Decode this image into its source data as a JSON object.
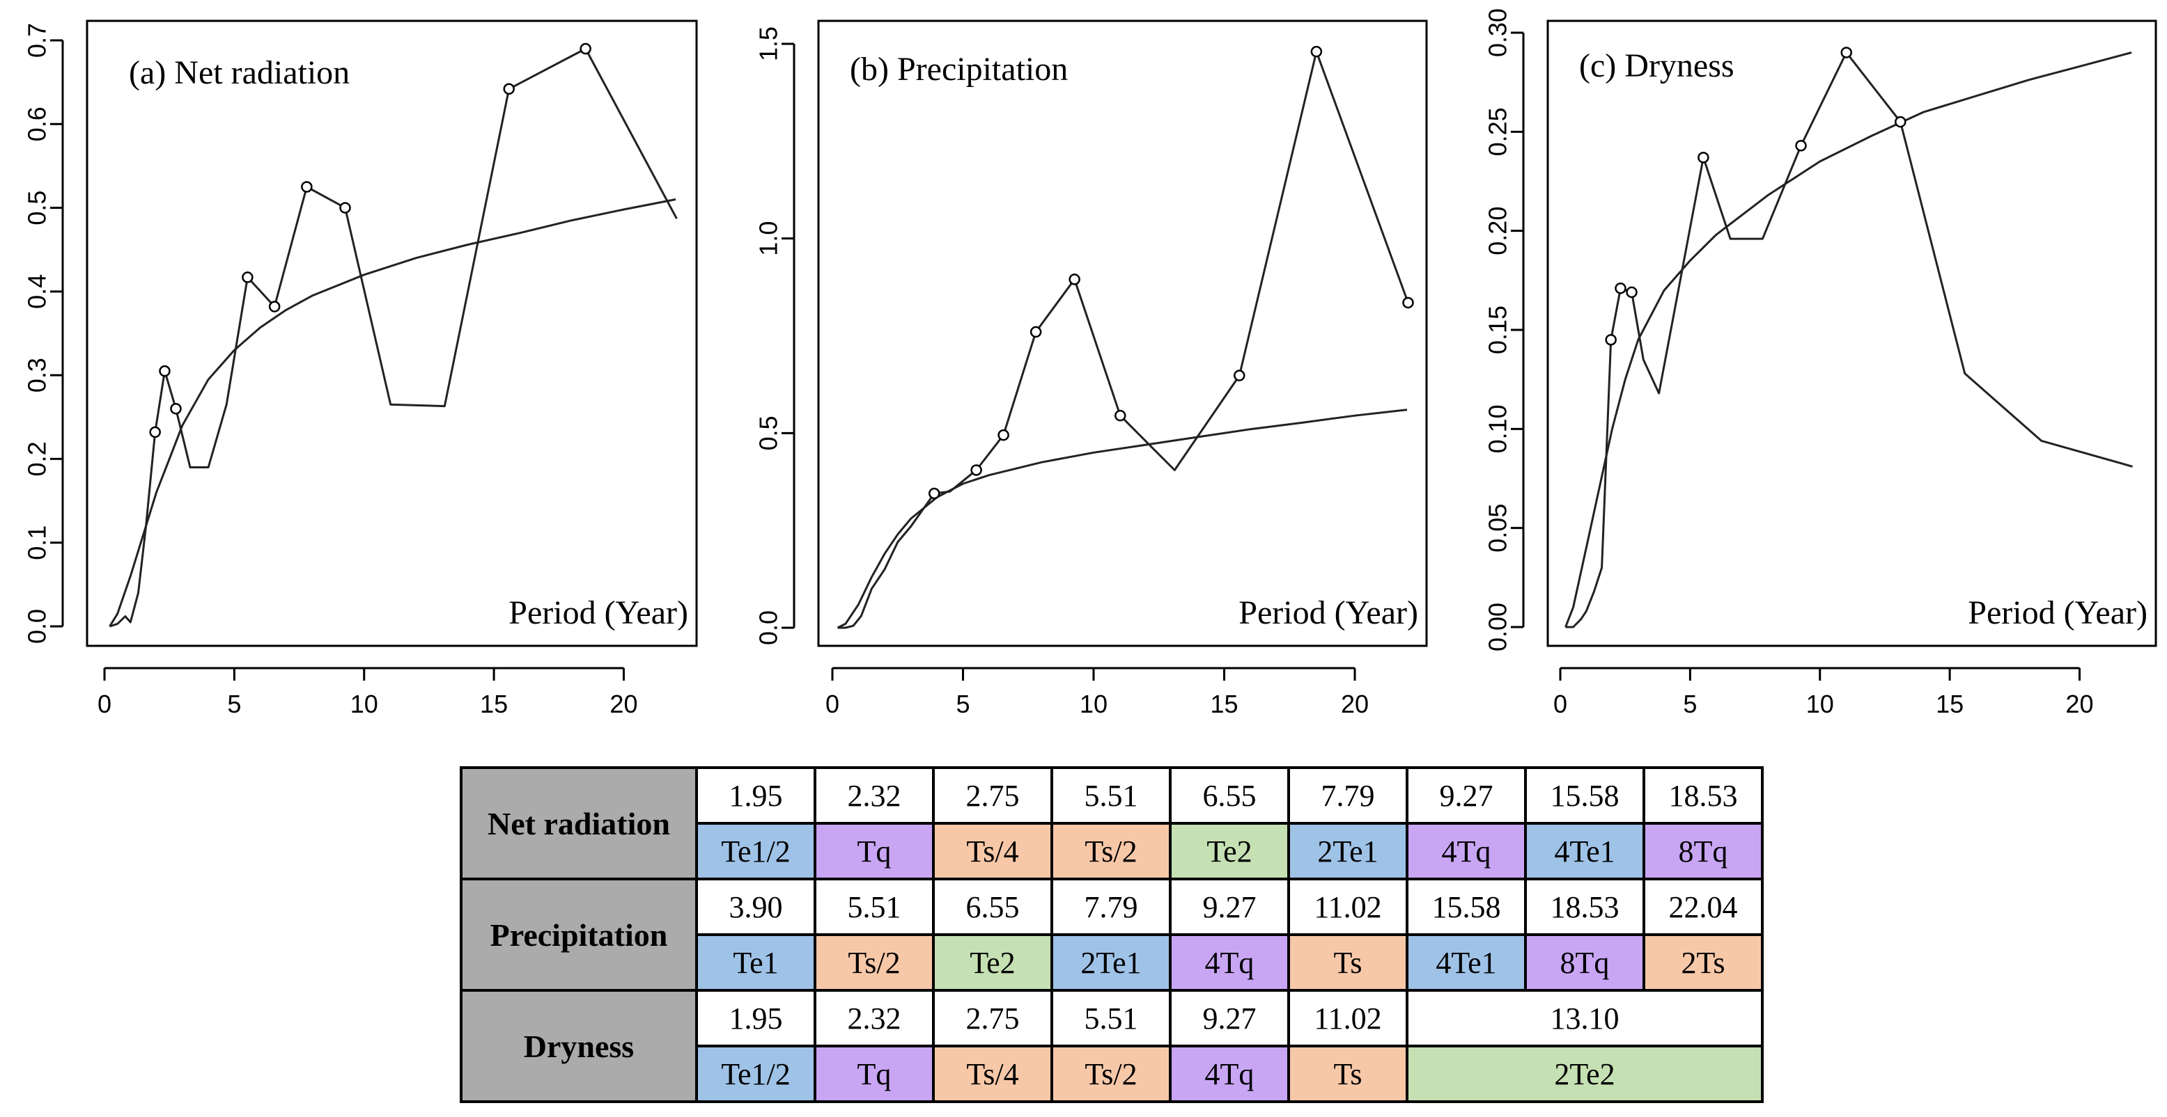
{
  "chart_data": [
    {
      "type": "line",
      "title": "(a) Net radiation",
      "xlabel": "Period (Year)",
      "ylabel": "",
      "xlim": [
        0,
        22
      ],
      "ylim": [
        0,
        0.7
      ],
      "xticks": [
        0,
        5,
        10,
        15,
        20
      ],
      "yticks": [
        0.0,
        0.1,
        0.2,
        0.3,
        0.4,
        0.5,
        0.6,
        0.7
      ],
      "ytick_labels": [
        "0.0",
        "0.1",
        "0.2",
        "0.3",
        "0.4",
        "0.5",
        "0.6",
        "0.7"
      ],
      "series": [
        {
          "style": "line",
          "x": [
            0.2,
            0.5,
            0.8,
            1.0,
            1.3,
            1.6,
            1.95,
            2.32,
            2.75,
            3.3,
            4.0,
            4.7,
            5.51,
            6.55,
            7.79,
            9.27,
            11.02,
            13.1,
            15.58,
            18.53,
            22.04
          ],
          "y": [
            0.0,
            0.003,
            0.012,
            0.005,
            0.04,
            0.12,
            0.232,
            0.305,
            0.26,
            0.19,
            0.19,
            0.265,
            0.417,
            0.382,
            0.525,
            0.5,
            0.265,
            0.263,
            0.642,
            0.69,
            0.487
          ]
        },
        {
          "style": "smooth",
          "x": [
            0.2,
            0.5,
            1.0,
            1.5,
            2.0,
            2.5,
            3.0,
            4.0,
            5.0,
            6.0,
            7.0,
            8.0,
            10.0,
            12.0,
            14.0,
            16.0,
            18.0,
            20.0,
            22.0
          ],
          "y": [
            0.0,
            0.015,
            0.06,
            0.11,
            0.16,
            0.2,
            0.24,
            0.295,
            0.33,
            0.357,
            0.378,
            0.395,
            0.42,
            0.44,
            0.456,
            0.47,
            0.485,
            0.498,
            0.51
          ]
        },
        {
          "style": "markers",
          "x": [
            1.95,
            2.32,
            2.75,
            5.51,
            6.55,
            7.79,
            9.27,
            15.58,
            18.53
          ],
          "y": [
            0.232,
            0.305,
            0.26,
            0.417,
            0.382,
            0.525,
            0.5,
            0.642,
            0.69
          ]
        }
      ]
    },
    {
      "type": "line",
      "title": "(b) Precipitation",
      "xlabel": "Period (Year)",
      "ylabel": "",
      "xlim": [
        0,
        22
      ],
      "ylim": [
        0,
        1.5
      ],
      "xticks": [
        0,
        5,
        10,
        15,
        20
      ],
      "yticks": [
        0.0,
        0.5,
        1.0,
        1.5
      ],
      "ytick_labels": [
        "0.0",
        "0.5",
        "1.0",
        "1.5"
      ],
      "series": [
        {
          "style": "line",
          "x": [
            0.2,
            0.5,
            0.8,
            1.1,
            1.5,
            2.0,
            2.5,
            3.0,
            3.9,
            4.5,
            5.51,
            6.55,
            7.79,
            9.27,
            11.02,
            13.1,
            15.58,
            18.53,
            22.04
          ],
          "y": [
            0.0,
            0.0,
            0.005,
            0.03,
            0.1,
            0.15,
            0.22,
            0.26,
            0.345,
            0.35,
            0.405,
            0.495,
            0.76,
            0.895,
            0.545,
            0.405,
            0.648,
            1.48,
            0.835
          ]
        },
        {
          "style": "smooth",
          "x": [
            0.2,
            0.5,
            1.0,
            1.5,
            2.0,
            2.5,
            3.0,
            4.0,
            5.0,
            6.0,
            8.0,
            10.0,
            12.0,
            14.0,
            16.0,
            18.0,
            20.0,
            22.0
          ],
          "y": [
            0.0,
            0.01,
            0.06,
            0.13,
            0.19,
            0.24,
            0.28,
            0.335,
            0.37,
            0.392,
            0.425,
            0.45,
            0.47,
            0.49,
            0.51,
            0.527,
            0.545,
            0.56
          ]
        },
        {
          "style": "markers",
          "x": [
            3.9,
            5.51,
            6.55,
            7.79,
            9.27,
            11.02,
            15.58,
            18.53,
            22.04
          ],
          "y": [
            0.345,
            0.405,
            0.495,
            0.76,
            0.895,
            0.545,
            0.648,
            1.48,
            0.835
          ]
        }
      ]
    },
    {
      "type": "line",
      "title": "(c) Dryness",
      "xlabel": "Period (Year)",
      "ylabel": "",
      "xlim": [
        0,
        22
      ],
      "ylim": [
        0,
        0.3
      ],
      "xticks": [
        0,
        5,
        10,
        15,
        20
      ],
      "yticks": [
        0.0,
        0.05,
        0.1,
        0.15,
        0.2,
        0.25,
        0.3
      ],
      "ytick_labels": [
        "0.00",
        "0.05",
        "0.10",
        "0.15",
        "0.20",
        "0.25",
        "0.30"
      ],
      "series": [
        {
          "style": "line",
          "x": [
            0.2,
            0.5,
            0.8,
            1.0,
            1.3,
            1.6,
            1.95,
            2.32,
            2.75,
            3.2,
            3.8,
            5.51,
            6.55,
            7.79,
            9.27,
            11.02,
            13.1,
            15.58,
            18.53,
            22.04
          ],
          "y": [
            0.0,
            0.0,
            0.004,
            0.008,
            0.018,
            0.03,
            0.145,
            0.171,
            0.169,
            0.135,
            0.118,
            0.237,
            0.196,
            0.196,
            0.243,
            0.29,
            0.255,
            0.128,
            0.094,
            0.081
          ]
        },
        {
          "style": "smooth",
          "x": [
            0.2,
            0.5,
            1.0,
            1.5,
            2.0,
            2.5,
            3.0,
            4.0,
            5.0,
            6.0,
            8.0,
            10.0,
            12.0,
            14.0,
            16.0,
            18.0,
            20.0,
            22.0
          ],
          "y": [
            0.0,
            0.01,
            0.04,
            0.07,
            0.1,
            0.125,
            0.145,
            0.17,
            0.185,
            0.198,
            0.218,
            0.235,
            0.248,
            0.26,
            0.268,
            0.276,
            0.283,
            0.29
          ]
        },
        {
          "style": "markers",
          "x": [
            1.95,
            2.32,
            2.75,
            5.51,
            9.27,
            11.02,
            13.1
          ],
          "y": [
            0.145,
            0.171,
            0.169,
            0.237,
            0.243,
            0.29,
            0.255
          ]
        }
      ]
    }
  ],
  "table": {
    "colors": {
      "Te": "#9fc2e7",
      "Tq": "#c9a6f4",
      "Ts": "#f7c8a8",
      "Te2": "#c5e0b3",
      "header": "#ababab"
    },
    "net_radiation": {
      "label": "Net radiation",
      "periods": [
        "1.95",
        "2.32",
        "2.75",
        "5.51",
        "6.55",
        "7.79",
        "9.27",
        "15.58",
        "18.53"
      ],
      "codes": [
        "Te1/2",
        "Tq",
        "Ts/4",
        "Ts/2",
        "Te2",
        "2Te1",
        "4Tq",
        "4Te1",
        "8Tq"
      ]
    },
    "precipitation": {
      "label": "Precipitation",
      "periods": [
        "3.90",
        "5.51",
        "6.55",
        "7.79",
        "9.27",
        "11.02",
        "15.58",
        "18.53",
        "22.04"
      ],
      "codes": [
        "Te1",
        "Ts/2",
        "Te2",
        "2Te1",
        "4Tq",
        "Ts",
        "4Te1",
        "8Tq",
        "2Ts"
      ]
    },
    "dryness": {
      "label": "Dryness",
      "periods": [
        "1.95",
        "2.32",
        "2.75",
        "5.51",
        "9.27",
        "11.02",
        "13.10"
      ],
      "codes": [
        "Te1/2",
        "Tq",
        "Ts/4",
        "Ts/2",
        "4Tq",
        "Ts",
        "2Te2"
      ]
    }
  }
}
